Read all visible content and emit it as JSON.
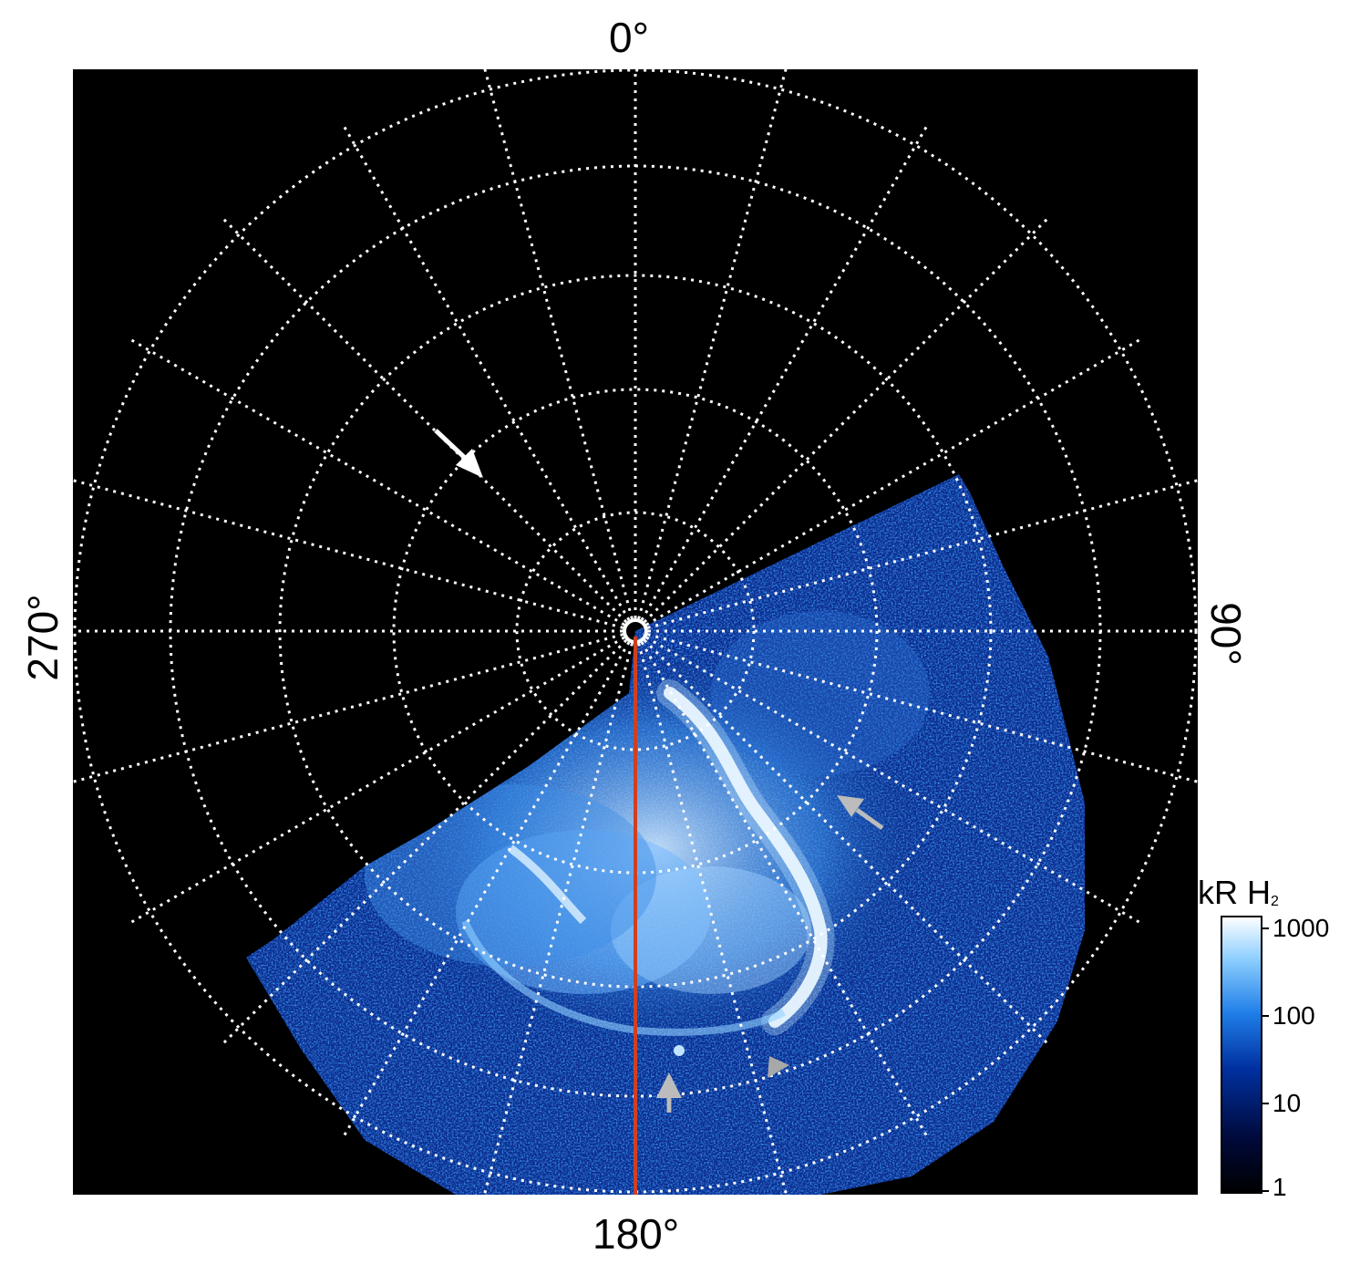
{
  "figure": {
    "labels": {
      "top": "0°",
      "bottom": "180°",
      "left": "270°",
      "right": "90°"
    },
    "colorbar": {
      "title": "kR H",
      "title_subscript": "2",
      "ticks": [
        "1000",
        "100",
        "10",
        "1"
      ],
      "colors": [
        "#000000",
        "#000a3c",
        "#0030a0",
        "#1f7ee8",
        "#8fd0ff",
        "#ffffff"
      ]
    },
    "colors": {
      "background": "#000000",
      "grid": "#ffffff",
      "meridian": "#d0401f",
      "arrow_white": "#ffffff",
      "arrow_gray": "#bcbcbc"
    }
  }
}
